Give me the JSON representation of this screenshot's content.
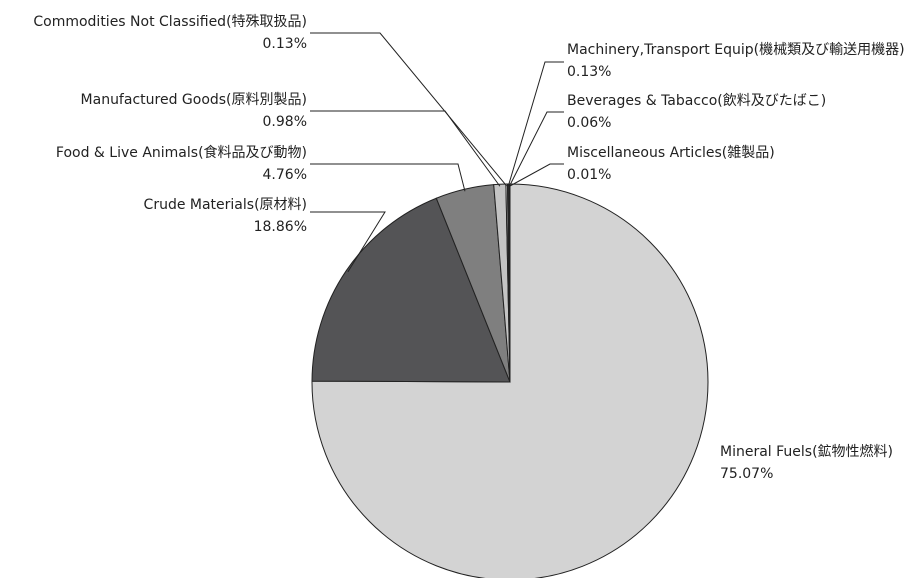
{
  "chart_data": {
    "type": "pie",
    "labels": [
      "Mineral Fuels(鉱物性燃料)",
      "Crude Materials(原材料)",
      "Food & Live Animals(食料品及び動物)",
      "Manufactured Goods(原料別製品)",
      "Commodities Not Classified(特殊取扱品)",
      "Machinery,Transport Equip(機械類及び輸送用機器)",
      "Beverages & Tabacco(飲料及びたばこ)",
      "Miscellaneous Articles(雑製品)"
    ],
    "values": [
      75.07,
      18.86,
      4.76,
      0.98,
      0.13,
      0.13,
      0.06,
      0.01
    ],
    "value_labels": [
      "75.07%",
      "18.86%",
      "4.76%",
      "0.98%",
      "0.13%",
      "0.13%",
      "0.06%",
      "0.01%"
    ],
    "colors": [
      "#d3d3d3",
      "#545456",
      "#7f7f7f",
      "#c4c4c4",
      "#e0e0e0",
      "#333333",
      "#555555",
      "#222222"
    ]
  }
}
